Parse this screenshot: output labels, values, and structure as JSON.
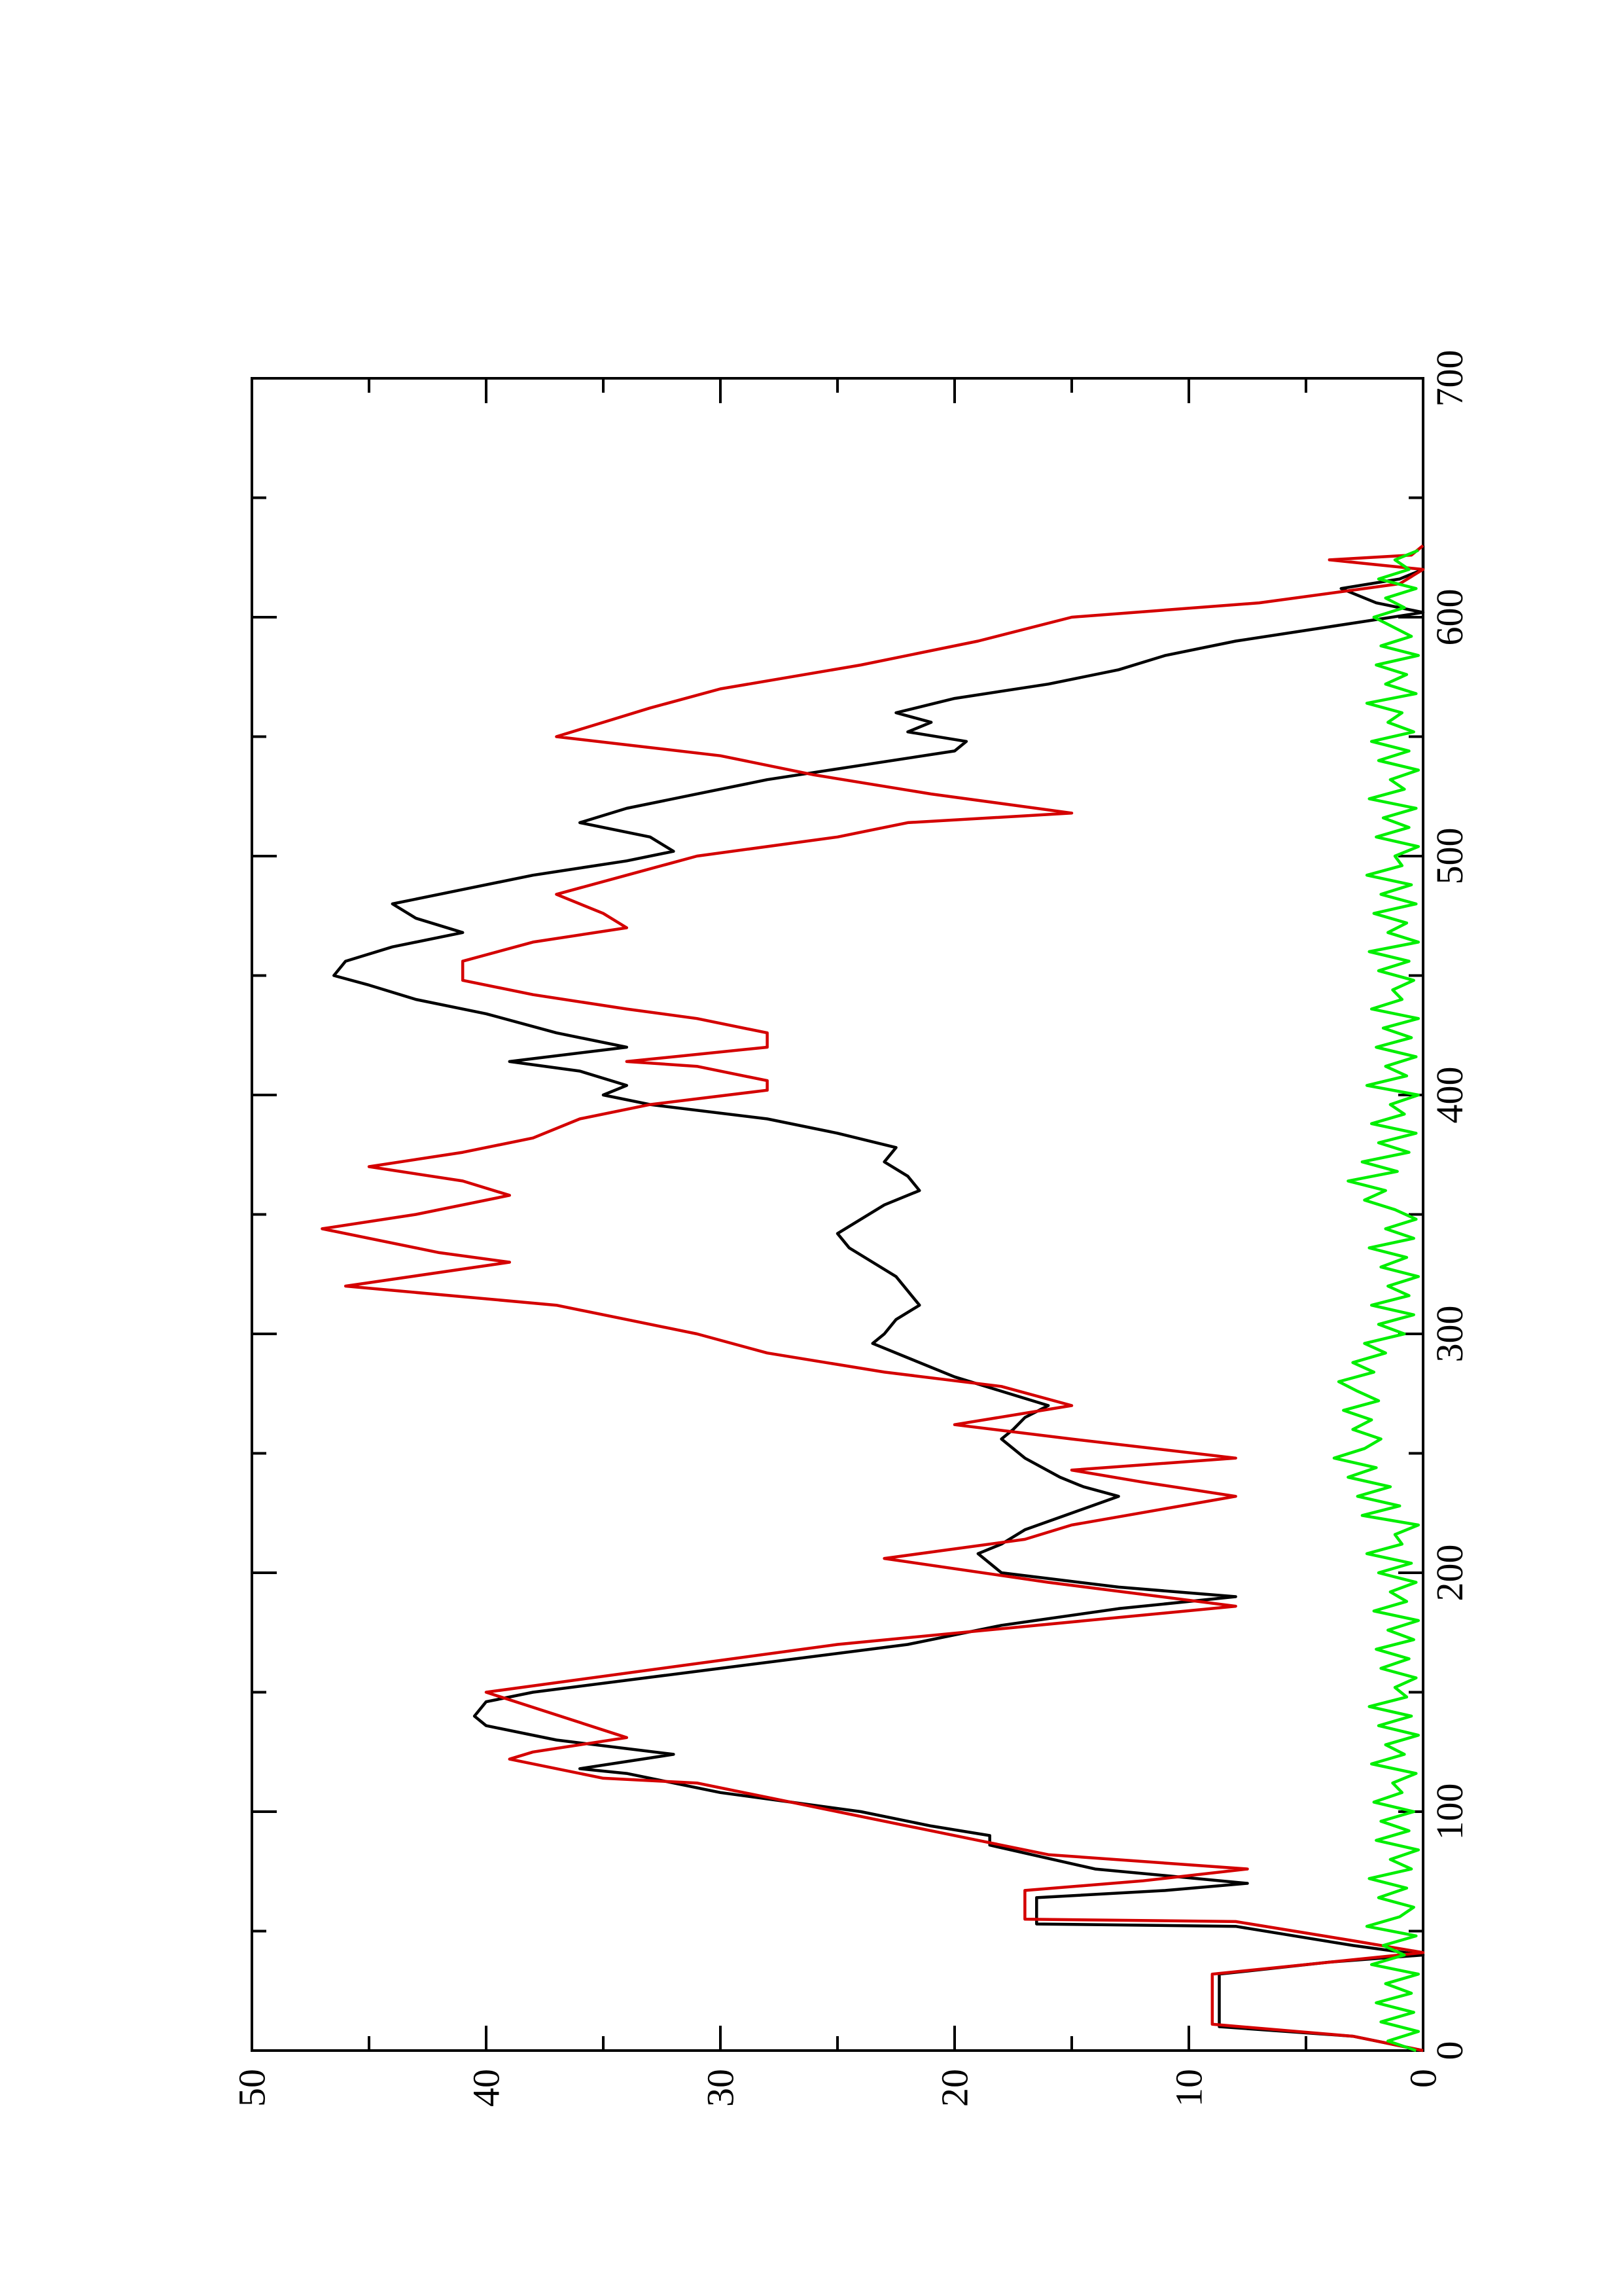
{
  "chart_data": {
    "type": "line",
    "orientation": "rotated 90 degrees counter-clockwise (x axis runs bottom-to-top along the right edge, y axis runs right-to-left along the bottom edge)",
    "title": "",
    "xlabel": "",
    "ylabel": "",
    "xlim": [
      0,
      700
    ],
    "ylim": [
      0,
      50
    ],
    "x_ticks_major": [
      0,
      100,
      200,
      300,
      400,
      500,
      600,
      700
    ],
    "x_ticks_minor": [
      50,
      150,
      250,
      350,
      450,
      550,
      650
    ],
    "y_ticks_major": [
      0,
      10,
      20,
      30,
      40,
      50
    ],
    "y_ticks_minor": [
      5,
      15,
      25,
      35,
      45
    ],
    "x_tick_labels": [
      "0",
      "100",
      "200",
      "300",
      "400",
      "500",
      "600",
      "700"
    ],
    "y_tick_labels": [
      "0",
      "10",
      "20",
      "30",
      "40",
      "50"
    ],
    "grid": false,
    "legend": "none",
    "series": [
      {
        "color": "#000000",
        "x": [
          0,
          6,
          10,
          32,
          37,
          40,
          44,
          52,
          53,
          64,
          67,
          70,
          76,
          86,
          90,
          94,
          100,
          104,
          108,
          112,
          116,
          118,
          124,
          130,
          136,
          140,
          146,
          150,
          160,
          170,
          178,
          185,
          190,
          194,
          200,
          208,
          212,
          218,
          225,
          232,
          236,
          240,
          248,
          256,
          260,
          265,
          270,
          276,
          282,
          290,
          296,
          300,
          306,
          312,
          318,
          324,
          330,
          336,
          342,
          348,
          354,
          360,
          366,
          372,
          378,
          384,
          390,
          396,
          400,
          404,
          410,
          414,
          420,
          426,
          434,
          440,
          446,
          450,
          456,
          462,
          468,
          474,
          480,
          486,
          492,
          498,
          502,
          508,
          514,
          520,
          526,
          532,
          538,
          544,
          548,
          552,
          556,
          560,
          566,
          572,
          578,
          584,
          590,
          596,
          602,
          606,
          612,
          616,
          620,
          624,
          630
        ],
        "values": [
          0,
          3,
          8.7,
          8.7,
          4,
          0,
          3,
          8,
          16.5,
          16.5,
          11,
          7.5,
          14,
          18.5,
          18.5,
          21,
          24,
          27,
          30,
          32,
          34,
          36,
          32,
          37,
          40,
          40.5,
          40,
          38,
          30,
          22,
          18,
          13,
          8,
          13,
          18,
          19,
          18,
          17,
          15,
          13,
          14.5,
          15.5,
          17,
          18,
          17.5,
          17,
          16,
          18,
          20,
          22,
          23.5,
          23,
          22.5,
          21.5,
          22,
          22.5,
          23.5,
          24.5,
          25,
          24,
          23,
          21.5,
          22,
          23,
          22.5,
          25,
          28,
          33,
          35,
          34,
          36,
          39,
          34,
          37,
          40,
          43,
          45,
          46.5,
          46,
          44,
          41,
          43,
          44,
          41,
          38,
          34,
          32,
          33,
          36,
          34,
          31,
          28,
          24,
          20,
          19.5,
          22,
          21,
          22.5,
          20,
          16,
          13,
          11,
          8,
          4,
          0,
          2,
          3.5,
          1,
          0,
          0,
          0
        ]
      },
      {
        "color": "#d40000",
        "x": [
          0,
          6,
          11,
          32,
          38,
          41,
          46,
          54,
          55,
          67,
          71,
          76,
          82,
          88,
          94,
          100,
          106,
          112,
          114,
          122,
          125,
          131,
          150,
          170,
          186,
          196,
          206,
          214,
          220,
          232,
          238,
          243,
          248,
          256,
          262,
          270,
          278,
          284,
          292,
          300,
          306,
          312,
          320,
          330,
          334,
          344,
          350,
          358,
          364,
          370,
          376,
          382,
          390,
          396,
          402,
          406,
          412,
          414,
          420,
          426,
          432,
          436,
          442,
          448,
          456,
          464,
          470,
          476,
          484,
          492,
          500,
          508,
          514,
          518,
          526,
          534,
          542,
          550,
          556,
          562,
          570,
          580,
          590,
          600,
          606,
          614,
          620,
          622,
          624,
          626,
          630
        ],
        "values": [
          0,
          3,
          9,
          9,
          3,
          0,
          3,
          8,
          17,
          17,
          12,
          7.5,
          16,
          19,
          22,
          25,
          28,
          31,
          35,
          39,
          38,
          34,
          40,
          25,
          8,
          16,
          23,
          17,
          15,
          8,
          12,
          15,
          8,
          15,
          20,
          15,
          18,
          23,
          28,
          31,
          34,
          37,
          46,
          39,
          42,
          47,
          43,
          39,
          41,
          45,
          41,
          38,
          36,
          33,
          28,
          28,
          31,
          34,
          28,
          28,
          31,
          34,
          38,
          41,
          41,
          38,
          34,
          35,
          37,
          34,
          31,
          25,
          22,
          15,
          21,
          26,
          30,
          37,
          35,
          33,
          30,
          24,
          19,
          15,
          7,
          1,
          0,
          2,
          4,
          0.5,
          0
        ]
      },
      {
        "color": "#00ee00",
        "x": [
          0,
          4,
          8,
          12,
          16,
          20,
          24,
          28,
          32,
          36,
          40,
          44,
          48,
          52,
          56,
          60,
          64,
          68,
          72,
          76,
          80,
          84,
          88,
          92,
          96,
          100,
          104,
          108,
          112,
          116,
          120,
          124,
          128,
          132,
          136,
          140,
          144,
          148,
          152,
          156,
          160,
          164,
          168,
          172,
          176,
          180,
          184,
          188,
          192,
          196,
          200,
          204,
          208,
          212,
          216,
          220,
          224,
          228,
          232,
          236,
          240,
          244,
          248,
          252,
          256,
          260,
          264,
          268,
          272,
          276,
          280,
          284,
          288,
          292,
          296,
          300,
          304,
          308,
          312,
          316,
          320,
          324,
          328,
          332,
          336,
          340,
          344,
          348,
          352,
          356,
          360,
          364,
          368,
          372,
          376,
          380,
          384,
          388,
          392,
          396,
          400,
          404,
          408,
          412,
          416,
          420,
          424,
          428,
          432,
          436,
          440,
          444,
          448,
          452,
          456,
          460,
          464,
          468,
          472,
          476,
          480,
          484,
          488,
          492,
          496,
          500,
          504,
          508,
          512,
          516,
          520,
          524,
          528,
          532,
          536,
          540,
          544,
          548,
          552,
          556,
          560,
          564,
          568,
          572,
          576,
          580,
          584,
          588,
          592,
          596,
          600,
          604,
          608,
          612,
          616,
          620,
          624,
          628
        ],
        "values": [
          0.3,
          1.5,
          0.2,
          1.8,
          0.4,
          2,
          0.5,
          1.6,
          0.2,
          2.2,
          0.8,
          1.7,
          0.3,
          2.4,
          1,
          0.4,
          1.9,
          0.7,
          2.3,
          0.5,
          1.4,
          0.2,
          2,
          0.6,
          1.8,
          0.4,
          2.1,
          0.9,
          1.3,
          0.3,
          2.2,
          0.8,
          1.6,
          0.2,
          1.9,
          0.5,
          2.3,
          0.7,
          1.2,
          0.3,
          1.8,
          0.6,
          2,
          0.4,
          1.5,
          0.2,
          2.1,
          0.7,
          1.4,
          0.3,
          1.9,
          0.5,
          2.4,
          0.9,
          1.2,
          0.2,
          2.6,
          1,
          2.8,
          1.4,
          3.2,
          2,
          3.8,
          2.5,
          1.8,
          3,
          2.2,
          3.4,
          1.9,
          2.8,
          3.6,
          2.1,
          3,
          1.6,
          2.5,
          0.8,
          1.9,
          0.4,
          2.2,
          0.6,
          1.5,
          0.2,
          1.8,
          0.7,
          2.3,
          0.4,
          1.6,
          0.3,
          1.2,
          2.5,
          1.6,
          3.2,
          1.1,
          2.6,
          0.6,
          1.9,
          0.3,
          2.2,
          0.8,
          1.4,
          0.2,
          2.4,
          0.7,
          1.6,
          0.3,
          2,
          0.5,
          1.7,
          0.2,
          2.2,
          0.9,
          1.3,
          0.4,
          1.9,
          0.6,
          2.3,
          0.2,
          1.5,
          0.7,
          2.1,
          0.3,
          1.8,
          0.5,
          2.4,
          0.9,
          1.2,
          0.2,
          2,
          0.6,
          1.7,
          0.3,
          2.3,
          0.8,
          1.4,
          0.2,
          1.9,
          0.6,
          2.2,
          0.4,
          1.5,
          0.9,
          2.4,
          0.3,
          1.6,
          0.7,
          2,
          0.2,
          1.8,
          0.5,
          1.3,
          2.1,
          0.8,
          1.6,
          0.3,
          1.9,
          0.6,
          1.2,
          0.2
        ]
      }
    ]
  }
}
